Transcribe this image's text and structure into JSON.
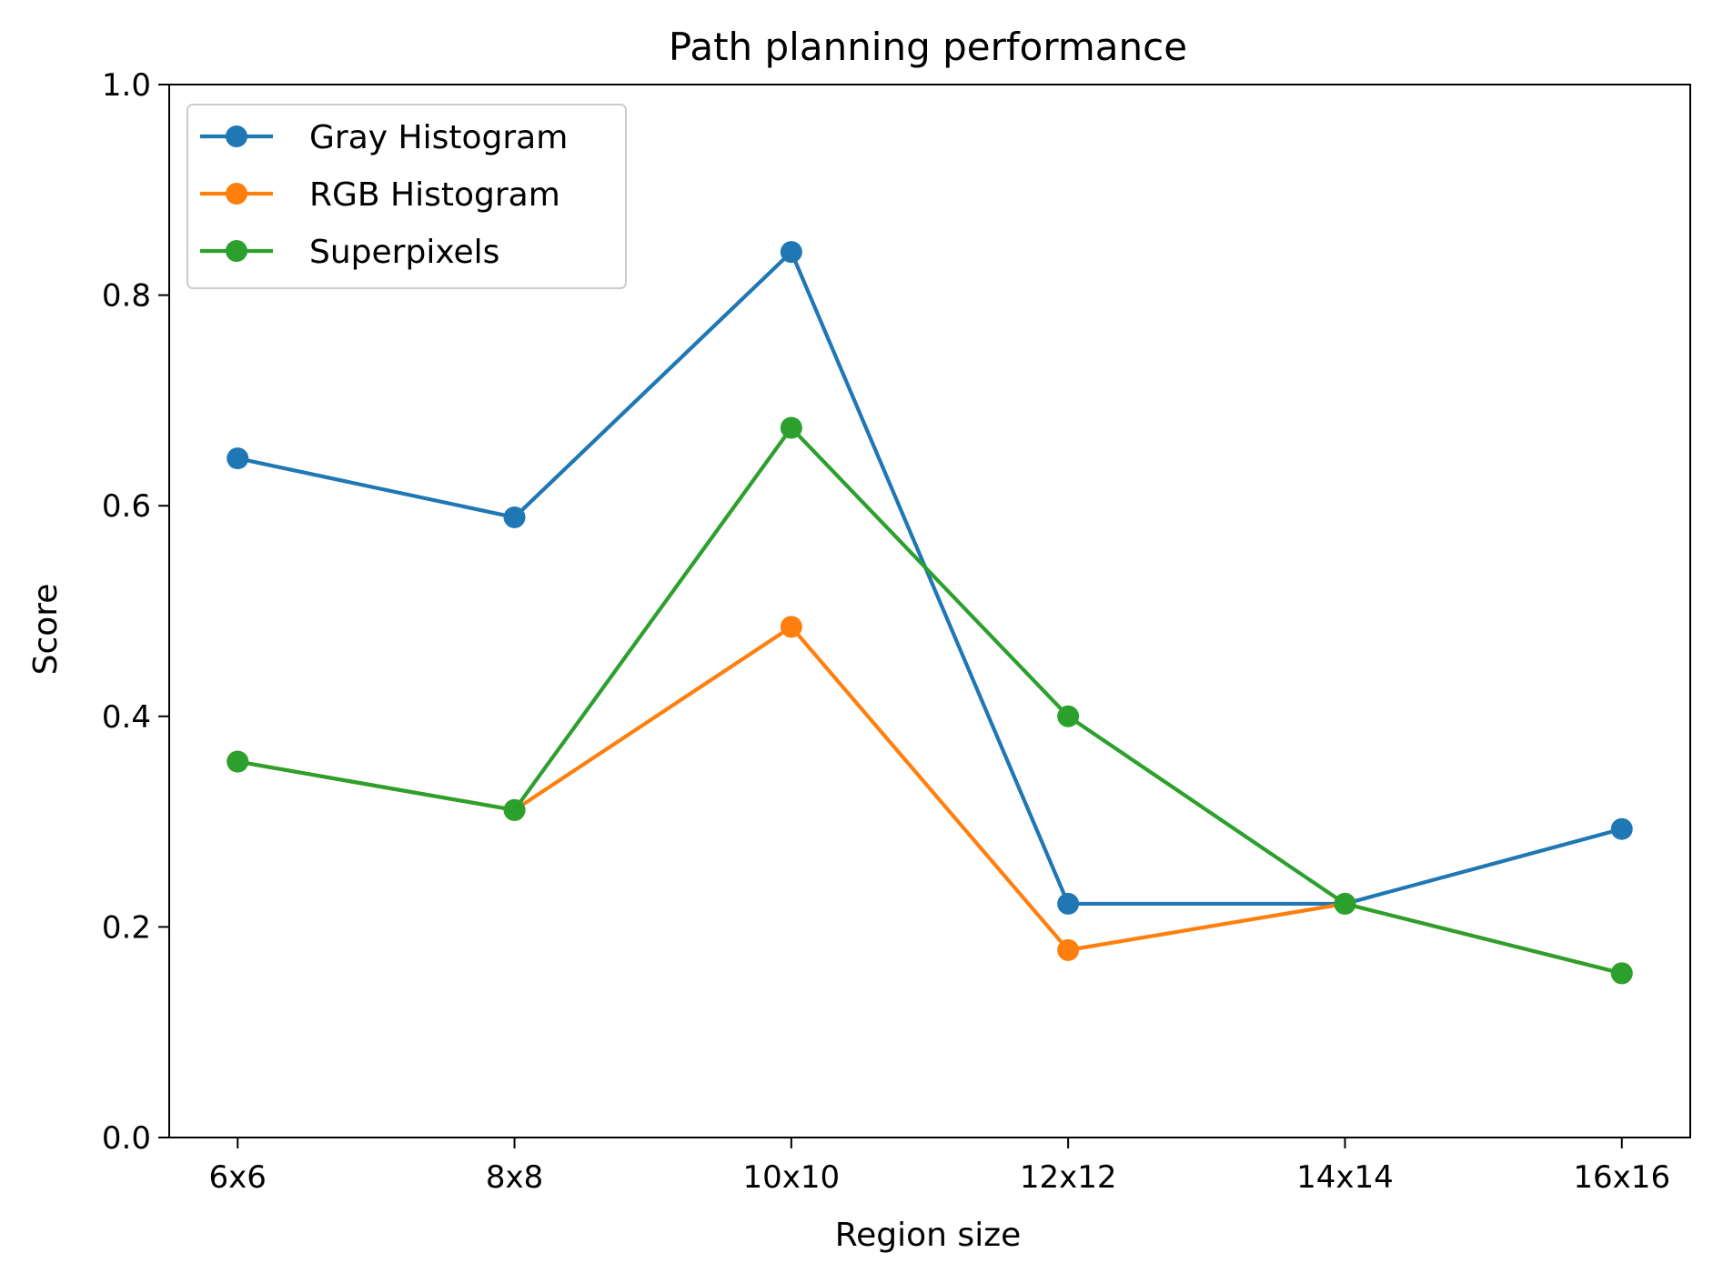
{
  "chart_data": {
    "type": "line",
    "title": "Path planning performance",
    "xlabel": "Region size",
    "ylabel": "Score",
    "categories": [
      "6x6",
      "8x8",
      "10x10",
      "12x12",
      "14x14",
      "16x16"
    ],
    "ylim": [
      0.0,
      1.0
    ],
    "yticks": [
      "0.0",
      "0.2",
      "0.4",
      "0.6",
      "0.8",
      "1.0"
    ],
    "grid": false,
    "legend_position": "upper-left",
    "series": [
      {
        "name": "Gray Histogram",
        "color": "#1f77b4",
        "values": [
          0.645,
          0.589,
          0.841,
          0.222,
          0.222,
          0.293
        ]
      },
      {
        "name": "RGB Histogram",
        "color": "#ff7f0e",
        "values": [
          0.357,
          0.311,
          0.485,
          0.178,
          0.222,
          0.156
        ]
      },
      {
        "name": "Superpixels",
        "color": "#2ca02c",
        "values": [
          0.357,
          0.311,
          0.674,
          0.4,
          0.222,
          0.156
        ]
      }
    ]
  }
}
